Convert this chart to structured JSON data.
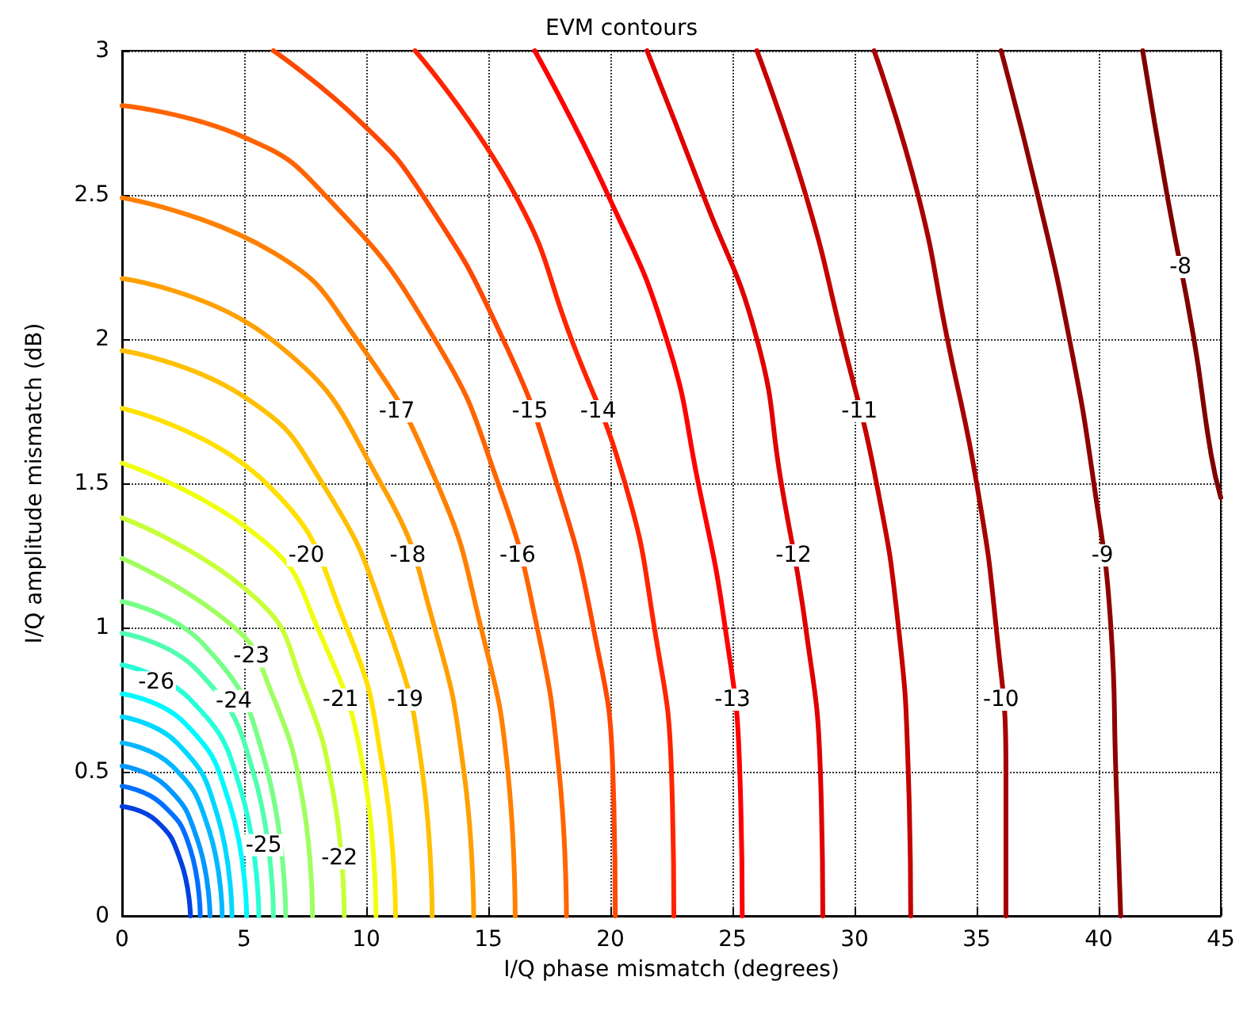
{
  "chart_data": {
    "type": "line",
    "title": "EVM contours",
    "xlabel": "I/Q phase mismatch (degrees)",
    "ylabel": "I/Q amplitude mismatch (dB)",
    "xlim": [
      0,
      45
    ],
    "xticks": [
      0,
      5,
      10,
      15,
      20,
      25,
      30,
      35,
      40,
      45
    ],
    "ylim": [
      0,
      3
    ],
    "yticks": [
      0,
      0.5,
      1,
      1.5,
      2,
      2.5,
      3
    ],
    "grid": true,
    "legend": false,
    "marker": "none",
    "line_style": "solid",
    "series": [
      {
        "name": "-8",
        "color": "#800000",
        "x": [
          41.8,
          42.8,
          43.9,
          44.6,
          45
        ],
        "values": [
          3,
          2.5,
          2,
          1.6,
          1.45
        ]
      },
      {
        "name": "-9",
        "color": "#8f0000",
        "x": [
          36.0,
          37.5,
          38.8,
          39.8,
          40.5,
          40.7,
          40.9
        ],
        "values": [
          3,
          2.5,
          2,
          1.5,
          1,
          0.5,
          0
        ]
      },
      {
        "name": "-10",
        "color": "#a80000",
        "x": [
          30.8,
          32.6,
          33.8,
          35.0,
          35.8,
          36.2,
          36.2
        ],
        "values": [
          3,
          2.5,
          2,
          1.5,
          1,
          0.5,
          0
        ]
      },
      {
        "name": "-11",
        "color": "#c40000",
        "x": [
          26.0,
          28.0,
          29.5,
          30.9,
          31.8,
          32.2,
          32.3
        ],
        "values": [
          3,
          2.5,
          2,
          1.5,
          1,
          0.5,
          0
        ]
      },
      {
        "name": "-12",
        "color": "#e00000",
        "x": [
          21.5,
          23.8,
          26.0,
          27.0,
          28.0,
          28.6,
          28.7
        ],
        "values": [
          3,
          2.5,
          2,
          1.5,
          1,
          0.5,
          0
        ]
      },
      {
        "name": "-13",
        "color": "#ff0000",
        "x": [
          16.9,
          19.9,
          22.3,
          23.6,
          24.7,
          25.3,
          25.4
        ],
        "values": [
          3,
          2.5,
          2,
          1.5,
          1,
          0.5,
          0
        ]
      },
      {
        "name": "-14",
        "color": "#ff2400",
        "x": [
          12.0,
          16.1,
          18.4,
          20.6,
          21.8,
          22.5,
          22.6
        ],
        "values": [
          3,
          2.5,
          2,
          1.5,
          1,
          0.5,
          0
        ]
      },
      {
        "name": "-15",
        "color": "#ff4800",
        "x": [
          6.2,
          9.8,
          12.3,
          15.6,
          17.8,
          19.3,
          20.1,
          20.2
        ],
        "values": [
          3,
          2.75,
          2.5,
          2,
          1.5,
          1,
          0.5,
          0
        ]
      },
      {
        "name": "-16",
        "color": "#ff6400",
        "x": [
          0,
          5.0,
          8.3,
          12.8,
          15.4,
          17.0,
          17.9,
          18.2
        ],
        "values": [
          2.81,
          2.7,
          2.5,
          2,
          1.5,
          1,
          0.5,
          0
        ]
      },
      {
        "name": "-17",
        "color": "#ff8000",
        "x": [
          0,
          6.2,
          9.6,
          12.9,
          14.7,
          15.8,
          16.1
        ],
        "values": [
          2.49,
          2.3,
          2,
          1.5,
          1,
          0.5,
          0
        ]
      },
      {
        "name": "-18",
        "color": "#ffa000",
        "x": [
          0,
          6.1,
          10.6,
          12.8,
          14.0,
          14.4
        ],
        "values": [
          2.21,
          2,
          1.5,
          1,
          0.5,
          0
        ]
      },
      {
        "name": "-19",
        "color": "#ffc000",
        "x": [
          0,
          5.0,
          8.2,
          10.9,
          12.3,
          12.7
        ],
        "values": [
          1.96,
          1.8,
          1.5,
          1,
          0.5,
          0
        ]
      },
      {
        "name": "-20",
        "color": "#ffe000",
        "x": [
          0,
          5.9,
          9.2,
          10.7,
          11.2
        ],
        "values": [
          1.76,
          1.5,
          1,
          0.5,
          0
        ]
      },
      {
        "name": "-21",
        "color": "#f0ff10",
        "x": [
          0,
          5.8,
          8.0,
          9.9,
          10.4
        ],
        "values": [
          1.57,
          1.3,
          1,
          0.5,
          0
        ]
      },
      {
        "name": "-22",
        "color": "#c8ff38",
        "x": [
          0,
          5.5,
          7.4,
          8.7,
          9.1
        ],
        "values": [
          1.38,
          1.1,
          0.8,
          0.4,
          0
        ]
      },
      {
        "name": "-23",
        "color": "#a0ff60",
        "x": [
          0,
          4.6,
          6.0,
          7.4,
          7.8
        ],
        "values": [
          1.24,
          1.0,
          0.8,
          0.4,
          0
        ]
      },
      {
        "name": "-24",
        "color": "#78ff88",
        "x": [
          0,
          3.35,
          5.8,
          6.7
        ],
        "values": [
          1.09,
          0.94,
          0.55,
          0
        ]
      },
      {
        "name": "-25",
        "color": "#50ffb0",
        "x": [
          0,
          3.1,
          5.4,
          6.2
        ],
        "values": [
          0.98,
          0.85,
          0.49,
          0
        ]
      },
      {
        "name": "-26",
        "color": "#28ffd8",
        "x": [
          0,
          2.8,
          4.85,
          5.6
        ],
        "values": [
          0.87,
          0.75,
          0.44,
          0
        ]
      },
      {
        "color": "#00f8ff",
        "x": [
          0,
          2.55,
          4.4,
          5.1
        ],
        "values": [
          0.77,
          0.67,
          0.39,
          0
        ]
      },
      {
        "color": "#00d8ff",
        "x": [
          0,
          2.25,
          3.9,
          4.5
        ],
        "values": [
          0.69,
          0.6,
          0.35,
          0
        ]
      },
      {
        "color": "#00b8ff",
        "x": [
          0,
          2.05,
          3.55,
          4.1
        ],
        "values": [
          0.6,
          0.52,
          0.3,
          0
        ]
      },
      {
        "color": "#0098ff",
        "x": [
          0,
          1.8,
          3.1,
          3.6
        ],
        "values": [
          0.52,
          0.45,
          0.26,
          0
        ]
      },
      {
        "color": "#0070ff",
        "x": [
          0,
          1.6,
          2.8,
          3.2
        ],
        "values": [
          0.45,
          0.39,
          0.23,
          0
        ]
      },
      {
        "color": "#0040e0",
        "x": [
          0,
          1.4,
          2.4,
          2.8
        ],
        "values": [
          0.38,
          0.33,
          0.19,
          0
        ]
      }
    ]
  }
}
